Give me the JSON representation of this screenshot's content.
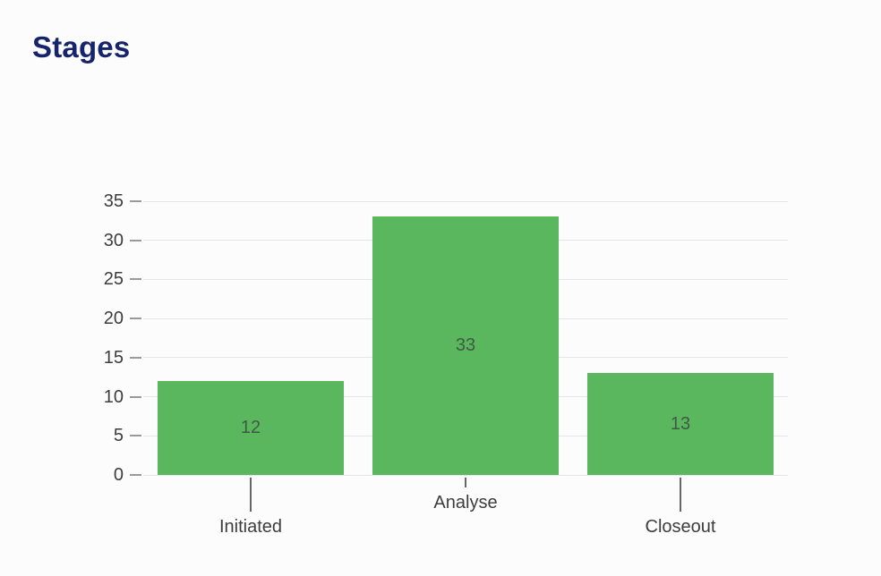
{
  "page": {
    "title": "Stages"
  },
  "colors": {
    "background": "#fcfcfc",
    "title_text": "#16246b",
    "bar_fill": "#5bb75e",
    "bar_value_text": "#3f5a45",
    "axis_text": "#3d3d3d",
    "category_text": "#3d3d3d",
    "gridline": "#e4e4e4",
    "tick_dash": "#9a9a9a",
    "leader_line": "#666666"
  },
  "chart_data": {
    "type": "bar",
    "title": "Stages",
    "categories": [
      "Initiated",
      "Analyse",
      "Closeout"
    ],
    "values": [
      12,
      33,
      13
    ],
    "value_labels": [
      "12",
      "33",
      "13"
    ],
    "xlabel": "",
    "ylabel": "",
    "ylim": [
      0,
      35
    ],
    "yticks": [
      0,
      5,
      10,
      15,
      20,
      25,
      30,
      35
    ],
    "grid": "horizontal",
    "legend": "none",
    "bar_color": "#5bb75e"
  }
}
